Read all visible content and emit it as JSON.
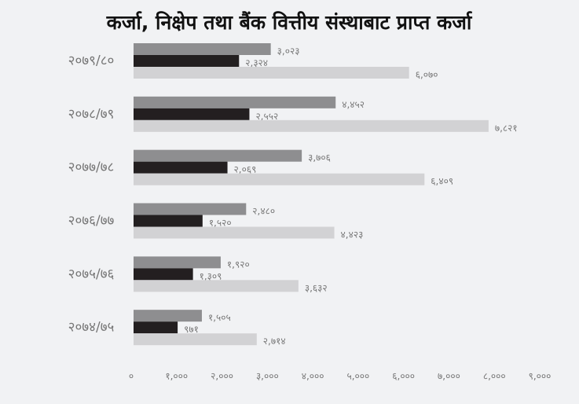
{
  "chart_data": {
    "type": "hbar",
    "title": "कर्जा, निक्षेप तथा बैंक वित्तीय संस्थाबाट प्राप्त कर्जा",
    "categories": [
      "२०७९/८०",
      "२०७८/७९",
      "२०७७/७८",
      "२०७६/७७",
      "२०७५/७६",
      "२०७४/७५"
    ],
    "series": [
      {
        "color": "#8e8e90",
        "values": [
          3023,
          4452,
          3706,
          2480,
          1920,
          1505
        ],
        "value_labels": [
          "३,०२३",
          "४,४५२",
          "३,७०६",
          "२,४८०",
          "१,९२०",
          "१,५०५"
        ]
      },
      {
        "color": "#231f20",
        "values": [
          2324,
          2552,
          2069,
          1520,
          1309,
          971
        ],
        "value_labels": [
          "२,३२४",
          "२,५५२",
          "२,०६९",
          "१,५२०",
          "१,३०९",
          "९७१"
        ]
      },
      {
        "color": "#d2d2d4",
        "values": [
          6070,
          7821,
          6409,
          4423,
          3632,
          2714
        ],
        "value_labels": [
          "६,०७०",
          "७,८२१",
          "६,४०९",
          "४,४२३",
          "३,६३२",
          "२,७१४"
        ]
      }
    ],
    "xlim": [
      0,
      9000
    ],
    "xticks": [
      {
        "value": 0,
        "label": "०"
      },
      {
        "value": 1000,
        "label": "१,०००"
      },
      {
        "value": 2000,
        "label": "२,०००"
      },
      {
        "value": 3000,
        "label": "३,०००"
      },
      {
        "value": 4000,
        "label": "४,०००"
      },
      {
        "value": 5000,
        "label": "५,०००"
      },
      {
        "value": 6000,
        "label": "६,०००"
      },
      {
        "value": 7000,
        "label": "७,०००"
      },
      {
        "value": 8000,
        "label": "८,०००"
      },
      {
        "value": 9000,
        "label": "९,०००"
      }
    ],
    "grid": false
  }
}
